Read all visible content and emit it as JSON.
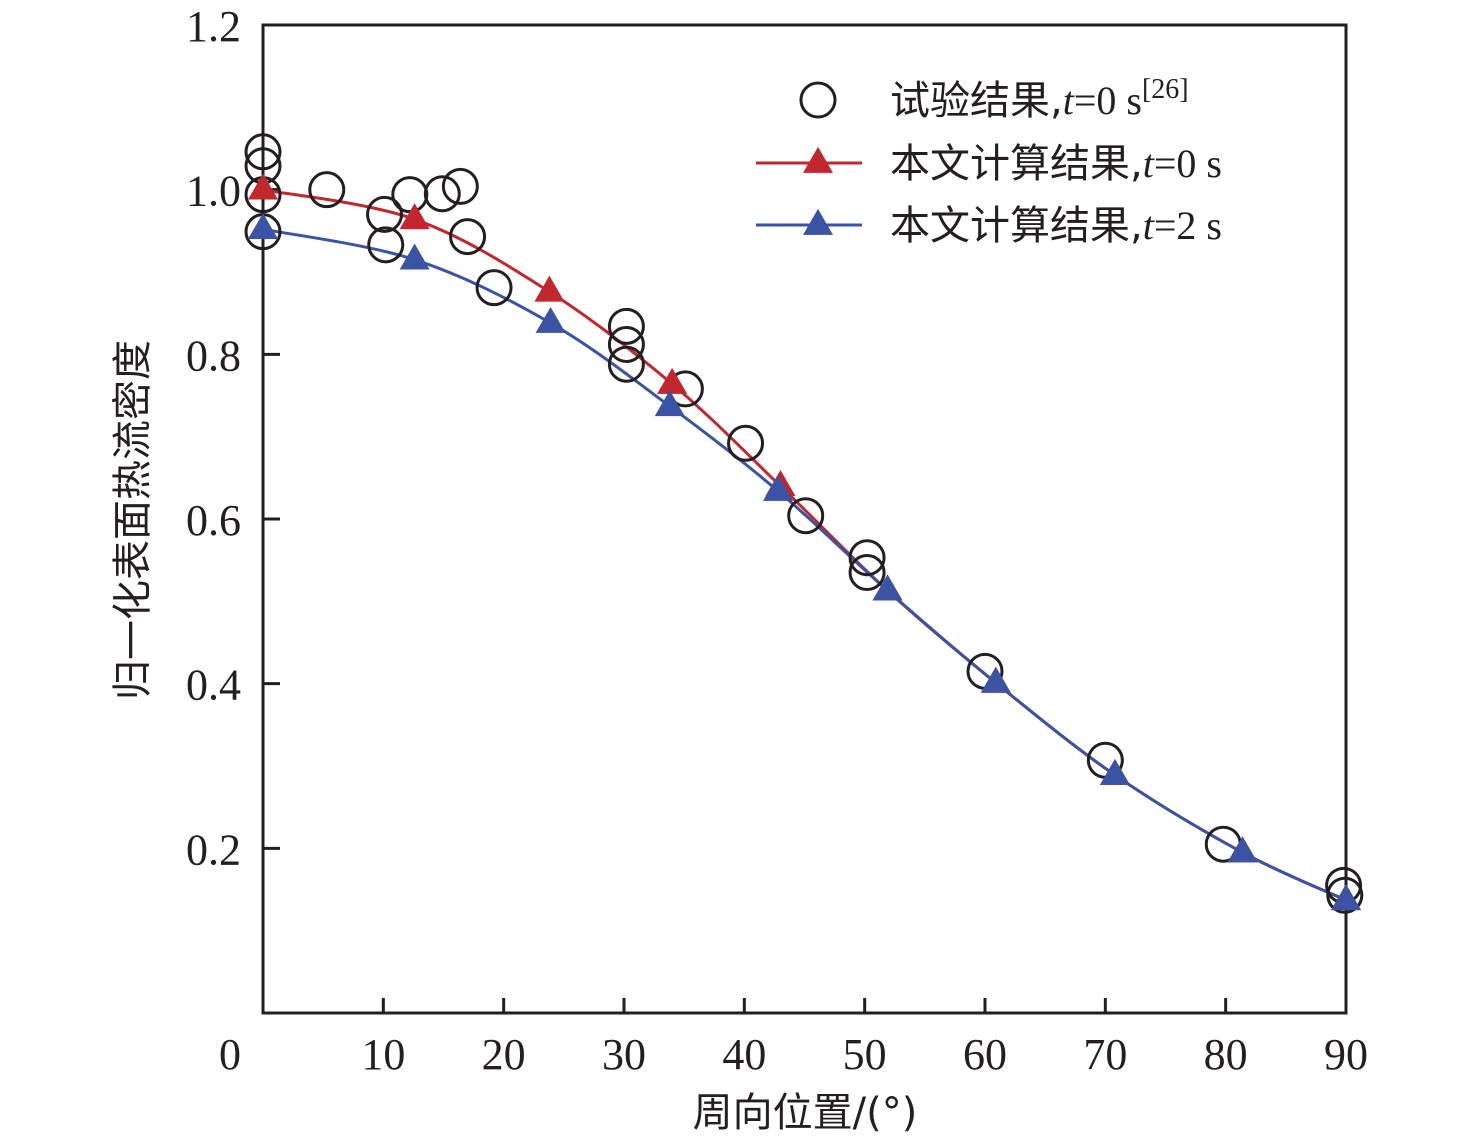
{
  "chart_data": {
    "type": "line",
    "title": "",
    "xlabel": "周向位置/(°)",
    "ylabel": "归一化表面热流密度",
    "xlim": [
      0,
      90
    ],
    "ylim": [
      0,
      1.2
    ],
    "x_ticks": [
      0,
      10,
      20,
      30,
      40,
      50,
      60,
      70,
      80,
      90
    ],
    "x_tick_labels": [
      "0",
      "10",
      "20",
      "30",
      "40",
      "50",
      "60",
      "70",
      "80",
      "90"
    ],
    "y_ticks": [
      0.2,
      0.4,
      0.6,
      0.8,
      1.0,
      1.2
    ],
    "y_tick_labels": [
      "0.2",
      "0.4",
      "0.6",
      "0.8",
      "1.0",
      "1.2"
    ],
    "grid": false,
    "legend_position": "top-right",
    "series": [
      {
        "name": "试验结果,t=0 s[26]",
        "label_main": "试验结果,",
        "label_var": "t",
        "label_rest": "=0 s",
        "label_sup": "[26]",
        "style": "scatter",
        "marker": "open-circle",
        "color": "#231f20",
        "x": [
          0,
          0,
          0,
          0,
          5.3,
          10.1,
          10.2,
          12.2,
          14.9,
          16.4,
          17.0,
          19.2,
          30.2,
          30.2,
          30.2,
          35.1,
          40.1,
          45.1,
          50.2,
          50.2,
          60.0,
          70.0,
          79.8,
          89.8,
          89.9
        ],
        "y": [
          1.046,
          1.029,
          0.994,
          0.949,
          1.0,
          0.97,
          0.933,
          0.994,
          0.995,
          1.004,
          0.943,
          0.881,
          0.834,
          0.812,
          0.788,
          0.758,
          0.692,
          0.604,
          0.553,
          0.535,
          0.415,
          0.307,
          0.205,
          0.155,
          0.143
        ]
      },
      {
        "name": "本文计算结果,t=0 s",
        "label_main": "本文计算结果,",
        "label_var": "t",
        "label_rest": "=0 s",
        "label_sup": "",
        "style": "line",
        "marker": "filled-triangle",
        "color": "#c1272d",
        "x": [
          0,
          12.6,
          23.8,
          34.0,
          43.0,
          51.9,
          60.9,
          70.8,
          81.4,
          90
        ],
        "y": [
          1.0,
          0.964,
          0.876,
          0.764,
          0.64,
          0.513,
          0.401,
          0.289,
          0.195,
          0.137
        ]
      },
      {
        "name": "本文计算结果,t=2 s",
        "label_main": "本文计算结果,",
        "label_var": "t",
        "label_rest": "=2 s",
        "label_sup": "",
        "style": "line",
        "marker": "filled-triangle",
        "color": "#3a53a4",
        "x": [
          0,
          12.6,
          23.9,
          33.8,
          42.8,
          51.9,
          60.9,
          70.8,
          81.4,
          90
        ],
        "y": [
          0.952,
          0.915,
          0.838,
          0.737,
          0.634,
          0.513,
          0.401,
          0.289,
          0.195,
          0.137
        ]
      }
    ]
  }
}
